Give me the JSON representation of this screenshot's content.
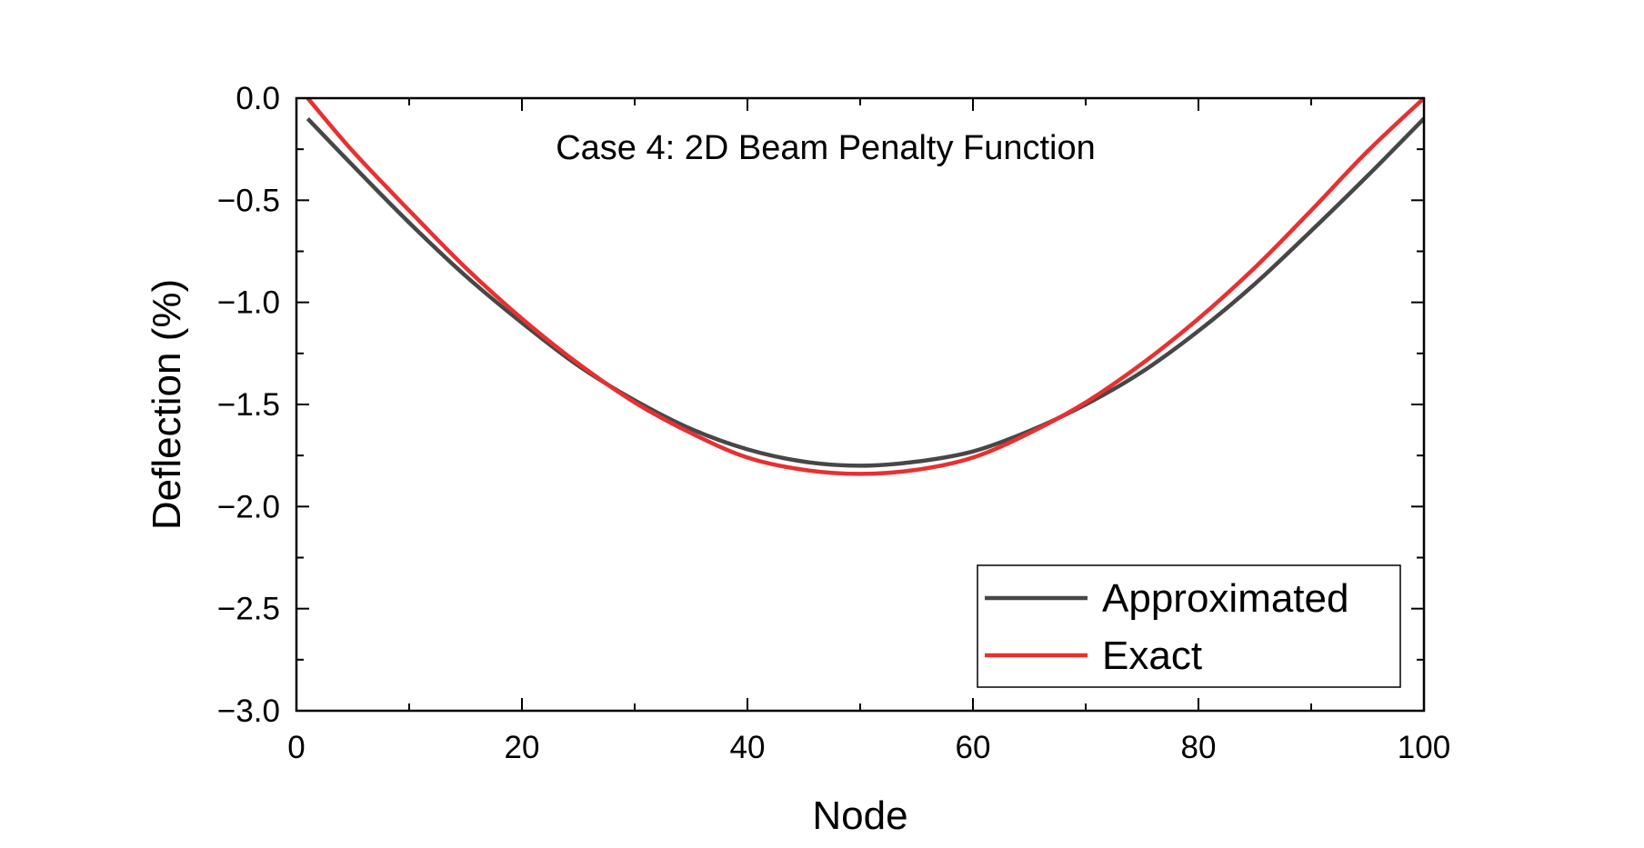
{
  "chart_data": {
    "type": "line",
    "title": "",
    "annotation": "Case 4: 2D Beam Penalty Function",
    "xlabel": "Node",
    "ylabel": "Deflection (%)",
    "xlim": [
      0,
      100
    ],
    "ylim": [
      -3.0,
      0.0
    ],
    "xticks": [
      0,
      20,
      40,
      60,
      80,
      100
    ],
    "xtick_labels": [
      "0",
      "20",
      "40",
      "60",
      "80",
      "100"
    ],
    "yticks": [
      0.0,
      -0.5,
      -1.0,
      -1.5,
      -2.0,
      -2.5,
      -3.0
    ],
    "ytick_labels": [
      "0.0",
      "−0.5",
      "−1.0",
      "−1.5",
      "−2.0",
      "−2.5",
      "−3.0"
    ],
    "grid": false,
    "legend_position": "bottom-right",
    "series": [
      {
        "name": "Approximated",
        "color": "#474747",
        "x": [
          1,
          5,
          10,
          15,
          20,
          25,
          30,
          35,
          40,
          45,
          50,
          55,
          60,
          65,
          70,
          75,
          80,
          85,
          90,
          95,
          100
        ],
        "y": [
          -0.1,
          -0.33,
          -0.61,
          -0.87,
          -1.1,
          -1.31,
          -1.48,
          -1.62,
          -1.72,
          -1.78,
          -1.8,
          -1.78,
          -1.73,
          -1.63,
          -1.5,
          -1.34,
          -1.14,
          -0.91,
          -0.65,
          -0.38,
          -0.1
        ]
      },
      {
        "name": "Exact",
        "color": "#e83030",
        "x": [
          1,
          5,
          10,
          15,
          20,
          25,
          30,
          35,
          40,
          45,
          50,
          55,
          60,
          65,
          70,
          75,
          80,
          85,
          90,
          95,
          100
        ],
        "y": [
          0.0,
          -0.26,
          -0.55,
          -0.83,
          -1.08,
          -1.3,
          -1.49,
          -1.64,
          -1.76,
          -1.82,
          -1.84,
          -1.82,
          -1.76,
          -1.64,
          -1.49,
          -1.3,
          -1.08,
          -0.83,
          -0.55,
          -0.26,
          0.0
        ]
      }
    ]
  }
}
